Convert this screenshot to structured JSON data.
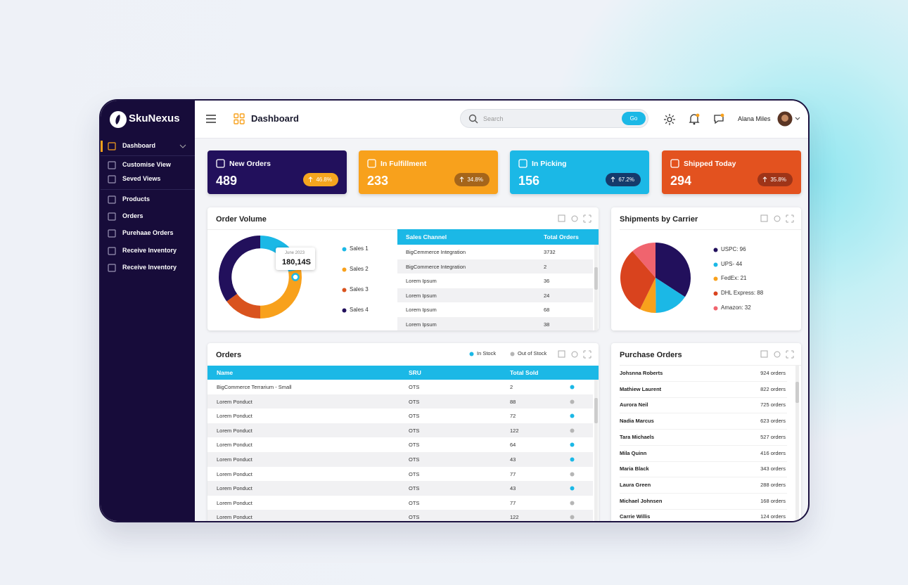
{
  "brand": "SkuNexus",
  "sidebar": {
    "items": [
      "Dashboard",
      "Customise View",
      "Seved Views",
      "Products",
      "Orders",
      "Purehaae Orders",
      "Receive Inventory",
      "Receive Inventory"
    ]
  },
  "header": {
    "title": "Dashboard",
    "search_placeholder": "Search",
    "search_button": "Go",
    "user": "Alana Miles"
  },
  "kpis": [
    {
      "label": "New Orders",
      "value": 489,
      "change": "46.8%",
      "color": "#22105c",
      "pill_color": "#f5a51e"
    },
    {
      "label": "In Fulfillment",
      "value": 233,
      "change": "34.8%",
      "color": "#f8a11c",
      "pill_color": "#a5651a"
    },
    {
      "label": "In Picking",
      "value": 156,
      "change": "67.2%",
      "color": "#1bb8e6",
      "pill_color": "#153a6b"
    },
    {
      "label": "Shipped Today",
      "value": 294,
      "change": "35.8%",
      "color": "#e3521f",
      "pill_color": "#9e3418"
    }
  ],
  "order_volume": {
    "title": "Order Volume",
    "chart": {
      "type": "donut",
      "categories": [
        "Sales 1",
        "Sales 2",
        "Sales 3",
        "Sales 4"
      ],
      "values": [
        22,
        28,
        15,
        35
      ],
      "colors": [
        "#1bb8e6",
        "#f8a11c",
        "#d9531e",
        "#22105c"
      ]
    },
    "tooltip": {
      "date": "June 2023",
      "value": "180,14S"
    },
    "table": {
      "columns": [
        "Sales Channel",
        "Total Orders"
      ],
      "rows": [
        [
          "BigCemmerce Integration",
          3732
        ],
        [
          "BigCommerce Integration",
          2
        ],
        [
          "Lorem Ipsum",
          36
        ],
        [
          "Lorem Ipsum",
          24
        ],
        [
          "Lorem Ipsum",
          68
        ],
        [
          "Lorem Ipsum",
          38
        ]
      ]
    }
  },
  "shipments": {
    "title": "Shipments by Carrier",
    "chart": {
      "type": "pie",
      "categories": [
        "USPC: 96",
        "UPS- 44",
        "FedEx: 21",
        "DHL Express: 88",
        "Amazon: 32"
      ],
      "values": [
        96,
        44,
        21,
        88,
        32
      ],
      "colors": [
        "#22105c",
        "#1bb8e6",
        "#f8a11c",
        "#d9431e",
        "#f0646e"
      ]
    }
  },
  "orders": {
    "title": "Orders",
    "legend": [
      {
        "name": "In Stock",
        "color": "#1bb8e6"
      },
      {
        "name": "Out of Stock",
        "color": "#b5b5b5"
      }
    ],
    "columns": [
      "Name",
      "SRU",
      "Total Sold"
    ],
    "rows": [
      {
        "name": "BigCommerce Terrarium - Small",
        "sru": "OTS",
        "total": 2,
        "color": "#1bb8e6"
      },
      {
        "name": "Lorem Ponduct",
        "sru": "OTS",
        "total": 88,
        "color": "#b5b5b5"
      },
      {
        "name": "Lorem Ponduct",
        "sru": "OTS",
        "total": 72,
        "color": "#1bb8e6"
      },
      {
        "name": "Lorem Ponduct",
        "sru": "OTS",
        "total": 122,
        "color": "#b5b5b5"
      },
      {
        "name": "Lorem Ponduct",
        "sru": "OTS",
        "total": 64,
        "color": "#1bb8e6"
      },
      {
        "name": "Lorem Ponduct",
        "sru": "OTS",
        "total": 43,
        "color": "#1bb8e6"
      },
      {
        "name": "Lorem Ponduct",
        "sru": "OTS",
        "total": 77,
        "color": "#b5b5b5"
      },
      {
        "name": "Lorem Ponduct",
        "sru": "OTS",
        "total": 43,
        "color": "#1bb8e6"
      },
      {
        "name": "Lorem Ponduct",
        "sru": "OTS",
        "total": 77,
        "color": "#b5b5b5"
      },
      {
        "name": "Lorem Ponduct",
        "sru": "OTS",
        "total": 122,
        "color": "#b5b5b5"
      }
    ]
  },
  "purchase_orders": {
    "title": "Purchase Orders",
    "rows": [
      {
        "name": "Johsnna Roberts",
        "orders": "924 orders"
      },
      {
        "name": "Mathiew Laurent",
        "orders": "822 orders"
      },
      {
        "name": "Aurora Neil",
        "orders": "725 orders"
      },
      {
        "name": "Nadia Marcus",
        "orders": "623 orders"
      },
      {
        "name": "Tara Michaels",
        "orders": "527 orders"
      },
      {
        "name": "Mila Quinn",
        "orders": "416 orders"
      },
      {
        "name": "Maria Black",
        "orders": "343 orders"
      },
      {
        "name": "Laura Green",
        "orders": "288 orders"
      },
      {
        "name": "Michael Johnsen",
        "orders": "168 orders"
      },
      {
        "name": "Carrie Willis",
        "orders": "124 orders"
      }
    ]
  }
}
